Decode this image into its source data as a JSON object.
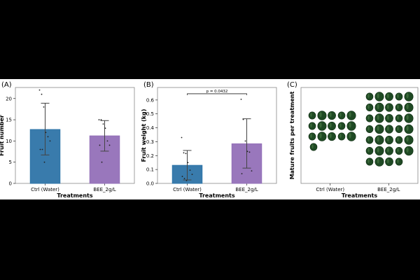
{
  "chart_data": [
    {
      "type": "bar",
      "panel_label": "(A)",
      "categories": [
        "Ctrl (Water)",
        "BEE_2g/L"
      ],
      "values": [
        12.7,
        11.2
      ],
      "error_low": [
        6.7,
        7.6
      ],
      "error_high": [
        18.9,
        14.8
      ],
      "points": [
        [
          22,
          21,
          18,
          12,
          11,
          10,
          8,
          8,
          5
        ],
        [
          15,
          15,
          14,
          13,
          10,
          9,
          9,
          5
        ]
      ],
      "colors": [
        "#2e74a8",
        "#9370b8"
      ],
      "xlabel": "Treatments",
      "ylabel": "Fruit number",
      "ylim": [
        0,
        22.6
      ],
      "yticks": [
        0,
        5,
        10,
        15,
        20
      ],
      "ytick_labels": [
        "0",
        "5",
        "10",
        "15",
        "20"
      ]
    },
    {
      "type": "bar",
      "panel_label": "(B)",
      "categories": [
        "Ctrl (Water)",
        "BEE_2g/L"
      ],
      "values": [
        0.13,
        0.285
      ],
      "error_low": [
        0.025,
        0.11
      ],
      "error_high": [
        0.237,
        0.465
      ],
      "points": [
        [
          0.33,
          0.22,
          0.215,
          0.15,
          0.095,
          0.065,
          0.05,
          0.035,
          0.02
        ],
        [
          0.605,
          0.46,
          0.305,
          0.23,
          0.225,
          0.09,
          0.07
        ]
      ],
      "colors": [
        "#2e74a8",
        "#9370b8"
      ],
      "xlabel": "Treatments",
      "ylabel": "Fruit weight (kg)",
      "ylim": [
        0,
        0.69
      ],
      "yticks": [
        0,
        0.1,
        0.2,
        0.3,
        0.4,
        0.5,
        0.6
      ],
      "ytick_labels": [
        "0.0",
        "0.1",
        "0.2",
        "0.3",
        "0.4",
        "0.5",
        "0.6"
      ],
      "annotation": {
        "text": "p = 0.0432",
        "y": 0.645
      }
    },
    {
      "type": "image-grid",
      "panel_label": "(C)",
      "categories": [
        "Ctrl (Water)",
        "BEE_2g/L"
      ],
      "fruit_counts": [
        16,
        34
      ],
      "rows": [
        [
          5,
          5,
          5,
          1
        ],
        [
          5,
          5,
          5,
          5,
          5,
          5,
          4
        ]
      ],
      "fruit_color": "#1f4a24",
      "xlabel": "Treatments",
      "ylabel": "Mature fruits per treatment"
    }
  ]
}
